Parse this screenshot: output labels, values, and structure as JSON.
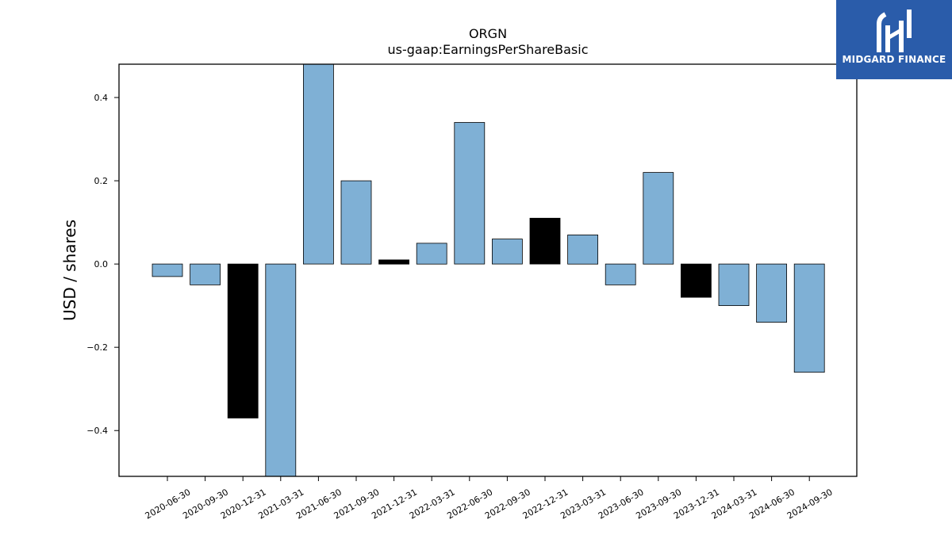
{
  "chart_data": {
    "type": "bar",
    "title": "ORGN",
    "subtitle": "us-gaap:EarningsPerShareBasic",
    "ylabel": "USD / shares",
    "xlabel": "",
    "ylim": [
      -0.51,
      0.48
    ],
    "yticks": [
      0.4,
      0.2,
      0.0,
      -0.2,
      -0.4
    ],
    "ytick_labels": [
      "0.4",
      "0.2",
      "0.0",
      "−0.2",
      "−0.4"
    ],
    "grid": false,
    "categories": [
      "2020-06-30",
      "2020-09-30",
      "2020-12-31",
      "2021-03-31",
      "2021-06-30",
      "2021-09-30",
      "2021-12-31",
      "2022-03-31",
      "2022-06-30",
      "2022-09-30",
      "2022-12-31",
      "2023-03-31",
      "2023-06-30",
      "2023-09-30",
      "2023-12-31",
      "2024-03-31",
      "2024-06-30",
      "2024-09-30"
    ],
    "values": [
      -0.03,
      -0.05,
      -0.37,
      -0.51,
      0.48,
      0.2,
      0.01,
      0.05,
      0.34,
      0.06,
      0.11,
      0.07,
      -0.05,
      0.22,
      -0.08,
      -0.1,
      -0.14,
      -0.26
    ],
    "colors": [
      "#7fb0d5",
      "#7fb0d5",
      "#000000",
      "#7fb0d5",
      "#7fb0d5",
      "#7fb0d5",
      "#000000",
      "#7fb0d5",
      "#7fb0d5",
      "#7fb0d5",
      "#000000",
      "#7fb0d5",
      "#7fb0d5",
      "#7fb0d5",
      "#000000",
      "#7fb0d5",
      "#7fb0d5",
      "#7fb0d5"
    ]
  },
  "logo": {
    "text": "MIDGARD FINANCE",
    "background": "#2a5caa"
  }
}
